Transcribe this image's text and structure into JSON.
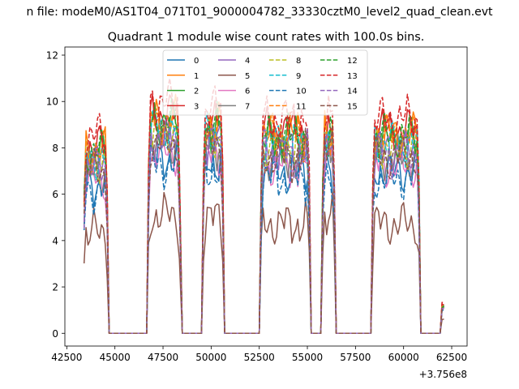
{
  "chart_data": {
    "type": "line",
    "suptitle": "n file: modeM0/AS1T04_071T01_9000004782_33330cztM0_level2_quad_clean.evt",
    "title": "Quadrant 1 module wise count rates with 100.0s bins.",
    "xlabel": "",
    "ylabel": "",
    "x_offset_label": "+3.756e8",
    "xlim": [
      42400,
      63300
    ],
    "ylim": [
      -0.55,
      12.35
    ],
    "xticks": [
      42500,
      45000,
      47500,
      50000,
      52500,
      55000,
      57500,
      60000,
      62500
    ],
    "xtick_labels": [
      "42500",
      "45000",
      "47500",
      "50000",
      "52500",
      "55000",
      "57500",
      "60000",
      "62500"
    ],
    "yticks": [
      0,
      2,
      4,
      6,
      8,
      10,
      12
    ],
    "ytick_labels": [
      "0",
      "2",
      "4",
      "6",
      "8",
      "10",
      "12"
    ],
    "legend_position": "upper center",
    "legend_ncol": 4,
    "segments": [
      {
        "x0": 43400,
        "x1": 44600,
        "level": 7.0,
        "rise_to": 0
      },
      {
        "x0": 46750,
        "x1": 48400,
        "level": 8.2,
        "rise_to": 0
      },
      {
        "x0": 49600,
        "x1": 50600,
        "level": 8.0,
        "rise_to": 0
      },
      {
        "x0": 52600,
        "x1": 55100,
        "level": 7.6,
        "rise_to": 0
      },
      {
        "x0": 55800,
        "x1": 56400,
        "level": 7.8,
        "rise_to": 0
      },
      {
        "x0": 58400,
        "x1": 60800,
        "level": 7.6,
        "rise_to": 0
      },
      {
        "x0": 62000,
        "x1": 62100,
        "level": 1.5,
        "rise_to": 0
      }
    ],
    "series": [
      {
        "name": "0",
        "color": "#1f77b4",
        "dash": "solid",
        "scale": 0.92
      },
      {
        "name": "1",
        "color": "#ff7f0e",
        "dash": "solid",
        "scale": 1.13
      },
      {
        "name": "2",
        "color": "#2ca02c",
        "dash": "solid",
        "scale": 1.1
      },
      {
        "name": "3",
        "color": "#d62728",
        "dash": "solid",
        "scale": 1.15
      },
      {
        "name": "4",
        "color": "#9467bd",
        "dash": "solid",
        "scale": 1.04
      },
      {
        "name": "5",
        "color": "#8c564b",
        "dash": "solid",
        "scale": 0.62
      },
      {
        "name": "6",
        "color": "#e377c2",
        "dash": "solid",
        "scale": 0.95
      },
      {
        "name": "7",
        "color": "#7f7f7f",
        "dash": "solid",
        "scale": 1.0
      },
      {
        "name": "8",
        "color": "#bcbd22",
        "dash": "dashed",
        "scale": 1.06
      },
      {
        "name": "9",
        "color": "#17becf",
        "dash": "dashed",
        "scale": 1.08
      },
      {
        "name": "10",
        "color": "#1f77b4",
        "dash": "dashed",
        "scale": 0.88
      },
      {
        "name": "11",
        "color": "#ff7f0e",
        "dash": "dashed",
        "scale": 1.12
      },
      {
        "name": "12",
        "color": "#2ca02c",
        "dash": "dashed",
        "scale": 1.12
      },
      {
        "name": "13",
        "color": "#d62728",
        "dash": "dashed",
        "scale": 1.22
      },
      {
        "name": "14",
        "color": "#9467bd",
        "dash": "dashed",
        "scale": 1.01
      },
      {
        "name": "15",
        "color": "#8c564b",
        "dash": "dashed",
        "scale": 1.0
      }
    ]
  }
}
